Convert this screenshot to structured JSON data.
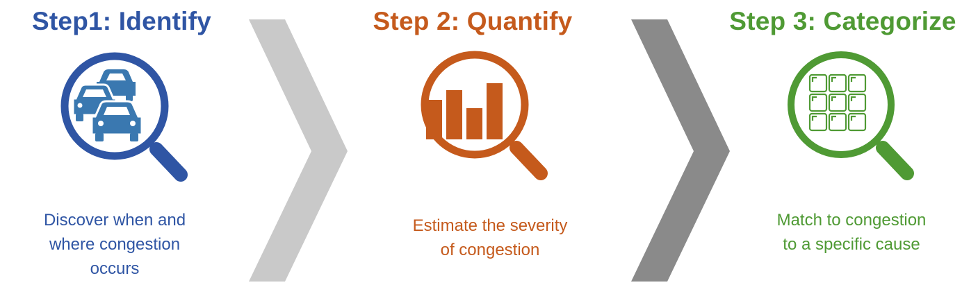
{
  "colors": {
    "step1": "#2f55a4",
    "step2": "#c55a1c",
    "step3": "#4f9a34",
    "chevron_light": "#c9c9c9",
    "chevron_dark": "#8a8a8a"
  },
  "steps": [
    {
      "title": "Step1: Identify",
      "icon": "magnifier-cars-icon",
      "description_lines": [
        "Discover when and",
        "where congestion",
        "occurs"
      ]
    },
    {
      "title": "Step 2: Quantify",
      "icon": "magnifier-bar-chart-icon",
      "description_lines": [
        "Estimate the severity",
        "of congestion"
      ]
    },
    {
      "title": "Step 3: Categorize",
      "icon": "magnifier-grid-icon",
      "description_lines": [
        "Match to congestion",
        "to a specific cause"
      ]
    }
  ],
  "chevrons": [
    {
      "icon": "chevron-right-icon",
      "shade": "light"
    },
    {
      "icon": "chevron-right-icon",
      "shade": "dark"
    }
  ]
}
